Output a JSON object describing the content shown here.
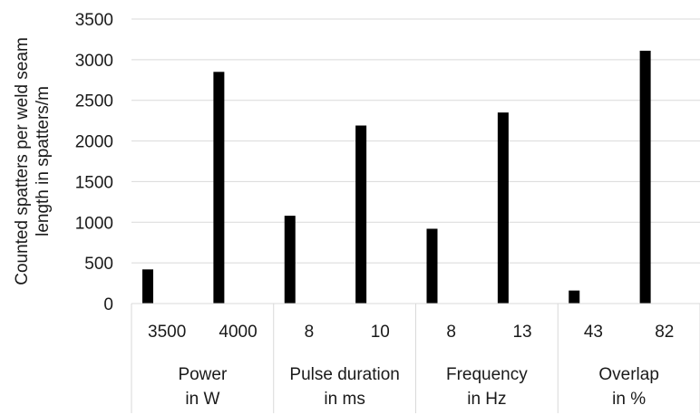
{
  "chart_data": {
    "type": "bar",
    "title": "",
    "ylabel_lines": [
      "Counted spatters per weld seam",
      "length in spatters/m"
    ],
    "ylim": [
      0,
      3500
    ],
    "yticks": [
      0,
      500,
      1000,
      1500,
      2000,
      2500,
      3000,
      3500
    ],
    "grid": "horizontal",
    "legend": "none",
    "bar_color": "#000000",
    "groups": [
      {
        "label_lines": [
          "Power",
          "in W"
        ],
        "categories": [
          "3500",
          "4000"
        ]
      },
      {
        "label_lines": [
          "Pulse duration",
          "in ms"
        ],
        "categories": [
          "8",
          "10"
        ]
      },
      {
        "label_lines": [
          "Frequency",
          "in Hz"
        ],
        "categories": [
          "8",
          "13"
        ]
      },
      {
        "label_lines": [
          "Overlap",
          "in %"
        ],
        "categories": [
          "43",
          "82"
        ]
      }
    ],
    "bars": [
      {
        "group": 0,
        "category": "3500",
        "value": 420
      },
      {
        "group": 0,
        "category": "4000",
        "value": 2850
      },
      {
        "group": 1,
        "category": "8",
        "value": 1080
      },
      {
        "group": 1,
        "category": "10",
        "value": 2190
      },
      {
        "group": 2,
        "category": "8",
        "value": 920
      },
      {
        "group": 2,
        "category": "13",
        "value": 2350
      },
      {
        "group": 3,
        "category": "43",
        "value": 160
      },
      {
        "group": 3,
        "category": "82",
        "value": 3110
      }
    ]
  }
}
